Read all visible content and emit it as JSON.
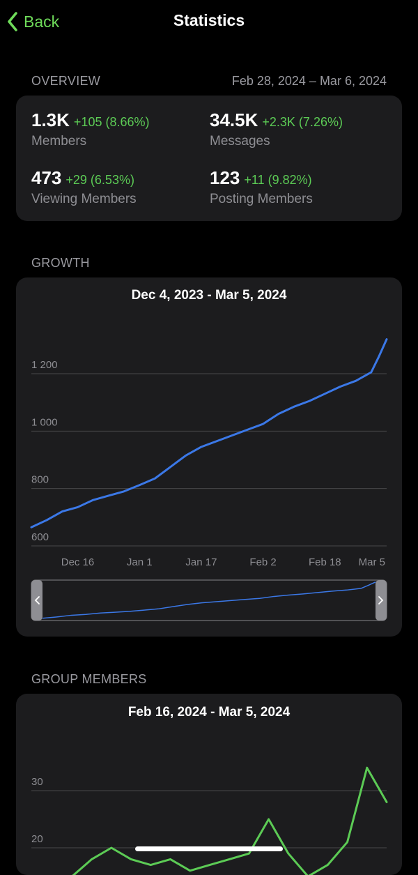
{
  "nav": {
    "back_label": "Back",
    "title": "Statistics"
  },
  "overview": {
    "label": "OVERVIEW",
    "date_range": "Feb 28, 2024 – Mar 6, 2024",
    "stats": [
      {
        "value": "1.3K",
        "delta": "+105 (8.66%)",
        "label": "Members"
      },
      {
        "value": "34.5K",
        "delta": "+2.3K (7.26%)",
        "label": "Messages"
      },
      {
        "value": "473",
        "delta": "+29 (6.53%)",
        "label": "Viewing Members"
      },
      {
        "value": "123",
        "delta": "+11 (9.82%)",
        "label": "Posting Members"
      }
    ]
  },
  "growth": {
    "label": "GROWTH",
    "title": "Dec 4, 2023 - Mar 5, 2024"
  },
  "group_members": {
    "label": "GROUP MEMBERS",
    "title": "Feb 16, 2024 - Mar 5, 2024"
  },
  "colors": {
    "accent": "#6fdc5a",
    "growth_line": "#3b78e7",
    "members_line": "#5ccb55",
    "card": "#1c1c1e"
  },
  "chart_data": [
    {
      "type": "line",
      "title": "Dec 4, 2023 - Mar 5, 2024",
      "x_ticks": [
        "Dec 16",
        "Jan 1",
        "Jan 17",
        "Feb 2",
        "Feb 18",
        "Mar 5"
      ],
      "y_ticks": [
        "600",
        "800",
        "1 000",
        "1 200"
      ],
      "ylim": [
        600,
        1200
      ],
      "grid": true,
      "series": [
        {
          "x": [
            "2023-12-04",
            "2023-12-08",
            "2023-12-12",
            "2023-12-16",
            "2023-12-20",
            "2023-12-24",
            "2023-12-28",
            "2024-01-01",
            "2024-01-05",
            "2024-01-09",
            "2024-01-13",
            "2024-01-17",
            "2024-01-21",
            "2024-01-25",
            "2024-01-29",
            "2024-02-02",
            "2024-02-06",
            "2024-02-10",
            "2024-02-14",
            "2024-02-18",
            "2024-02-22",
            "2024-02-26",
            "2024-03-01",
            "2024-03-03",
            "2024-03-05"
          ],
          "values": [
            665,
            690,
            720,
            735,
            760,
            775,
            790,
            812,
            835,
            875,
            915,
            945,
            965,
            985,
            1005,
            1025,
            1060,
            1085,
            1105,
            1130,
            1155,
            1175,
            1205,
            1260,
            1320
          ]
        }
      ]
    },
    {
      "type": "line",
      "title": "Feb 16, 2024 - Mar 5, 2024",
      "y_ticks": [
        "20",
        "30"
      ],
      "grid": true,
      "series": [
        {
          "x": [
            "2024-02-16",
            "2024-02-17",
            "2024-02-18",
            "2024-02-19",
            "2024-02-20",
            "2024-02-21",
            "2024-02-22",
            "2024-02-23",
            "2024-02-24",
            "2024-02-25",
            "2024-02-26",
            "2024-02-27",
            "2024-02-28",
            "2024-02-29",
            "2024-03-01",
            "2024-03-02",
            "2024-03-03",
            "2024-03-04",
            "2024-03-05"
          ],
          "values": [
            14,
            13,
            15,
            18,
            20,
            18,
            17,
            18,
            16,
            17,
            18,
            19,
            25,
            19,
            15,
            17,
            21,
            34,
            28
          ]
        }
      ]
    }
  ]
}
